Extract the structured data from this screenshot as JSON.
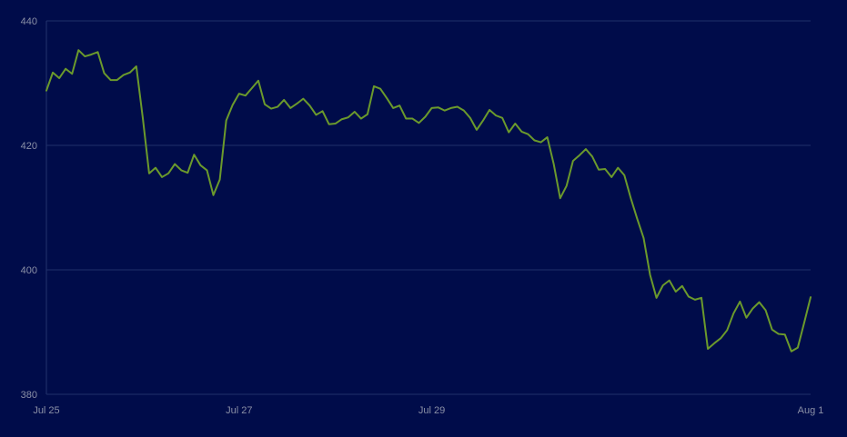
{
  "chart_data": {
    "type": "line",
    "x": [
      "Jul 25",
      null,
      null,
      null,
      null,
      null,
      null,
      null,
      null,
      null,
      null,
      null,
      null,
      null,
      null,
      null,
      null,
      null,
      null,
      null,
      null,
      null,
      null,
      null,
      null,
      null,
      null,
      null,
      null,
      null,
      "Jul 27",
      null,
      null,
      null,
      null,
      null,
      null,
      null,
      null,
      null,
      null,
      null,
      null,
      null,
      null,
      null,
      null,
      null,
      null,
      null,
      null,
      null,
      null,
      null,
      null,
      null,
      null,
      null,
      null,
      null,
      "Jul 29",
      null,
      null,
      null,
      null,
      null,
      null,
      null,
      null,
      null,
      null,
      null,
      null,
      null,
      null,
      null,
      null,
      null,
      null,
      null,
      null,
      null,
      null,
      null,
      null,
      null,
      null,
      null,
      null,
      null,
      null,
      null,
      null,
      null,
      null,
      null,
      null,
      null,
      null,
      null,
      null,
      null,
      null,
      null,
      null,
      null,
      null,
      null,
      null,
      null,
      null,
      null,
      null,
      null,
      null,
      null,
      null,
      null,
      null,
      "Aug 1"
    ],
    "series": [
      {
        "color": "#6b9a2c",
        "values": [
          428.8,
          431.7,
          430.8,
          432.3,
          431.5,
          435.3,
          434.3,
          434.6,
          435.0,
          431.6,
          430.5,
          430.5,
          431.3,
          431.7,
          432.7,
          424.5,
          415.5,
          416.4,
          414.9,
          415.5,
          417.0,
          416.0,
          415.6,
          418.5,
          416.8,
          416.0,
          412.0,
          414.5,
          424.0,
          426.5,
          428.3,
          428.0,
          429.2,
          430.4,
          426.6,
          425.9,
          426.2,
          427.3,
          426.0,
          426.7,
          427.5,
          426.4,
          424.9,
          425.5,
          423.4,
          423.5,
          424.2,
          424.5,
          425.4,
          424.3,
          425.0,
          429.5,
          429.1,
          427.6,
          426.0,
          426.4,
          424.3,
          424.3,
          423.6,
          424.6,
          426.0,
          426.1,
          425.6,
          426.0,
          426.2,
          425.6,
          424.4,
          422.5,
          424.0,
          425.7,
          424.8,
          424.4,
          422.1,
          423.5,
          422.2,
          421.8,
          420.8,
          420.5,
          421.3,
          417.0,
          411.5,
          413.5,
          417.5,
          418.4,
          419.4,
          418.2,
          416.1,
          416.2,
          414.9,
          416.4,
          415.2,
          411.5,
          408.2,
          405.1,
          399.2,
          395.5,
          397.5,
          398.3,
          396.5,
          397.4,
          395.7,
          395.2,
          395.5,
          387.3,
          388.2,
          389.0,
          390.3,
          393.0,
          394.9,
          392.3,
          393.8,
          394.8,
          393.5,
          390.4,
          389.7,
          389.6,
          386.9,
          387.5,
          391.5,
          395.6
        ]
      }
    ],
    "ylim": [
      380,
      440
    ],
    "yticks": [
      380,
      400,
      420,
      440
    ],
    "grid": true
  }
}
